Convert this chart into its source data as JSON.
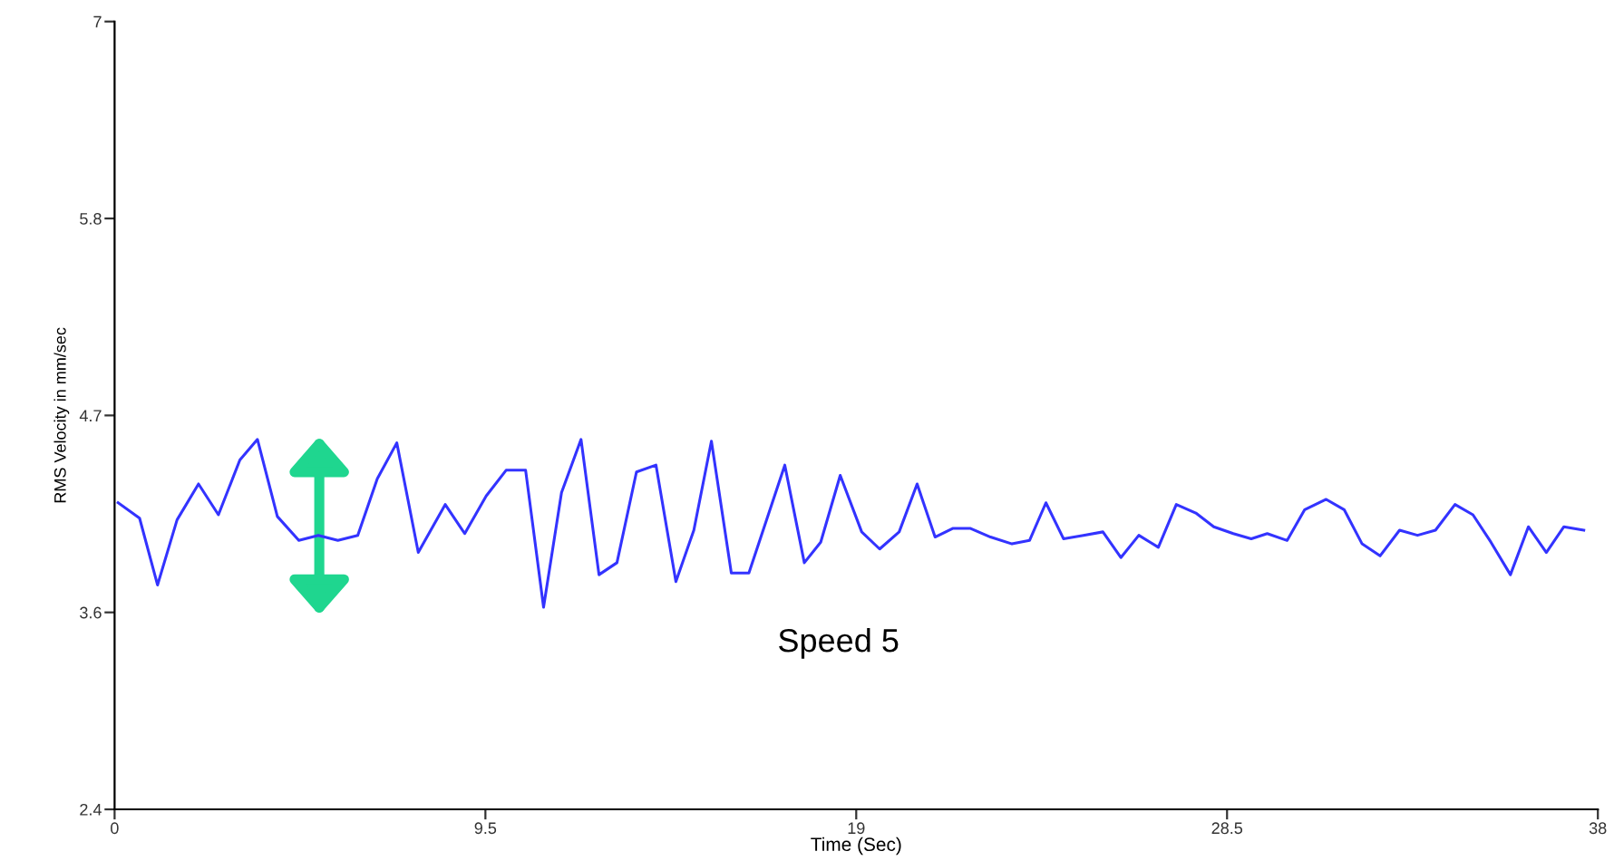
{
  "chart_data": {
    "type": "line",
    "xlabel": "Time (Sec)",
    "ylabel": "RMS Velocity in mm/sec",
    "annotations": [
      "Speed 5"
    ],
    "xlim": [
      0,
      38
    ],
    "xticks": [
      0,
      9.5,
      19,
      28.5,
      38
    ],
    "ylim": [
      2.4,
      7
    ],
    "yticks": [
      2.4,
      {
        "value": 3.55,
        "label": "3.6"
      },
      4.7,
      {
        "value": 5.85,
        "label": "5.8"
      },
      7
    ],
    "grid": false,
    "marker": "none",
    "line_style": "solid",
    "series": [
      {
        "color": "#3333ff",
        "x": [
          0.09,
          0.64,
          1.1,
          1.6,
          2.15,
          2.66,
          3.21,
          3.66,
          4.17,
          4.72,
          5.22,
          5.72,
          6.23,
          6.73,
          7.23,
          7.78,
          8.47,
          8.97,
          9.52,
          10.03,
          10.53,
          10.99,
          11.45,
          11.95,
          12.41,
          12.87,
          13.37,
          13.87,
          14.38,
          14.84,
          15.29,
          15.8,
          16.25,
          17.17,
          17.67,
          18.09,
          18.59,
          19.14,
          19.6,
          20.1,
          20.56,
          21.02,
          21.47,
          21.93,
          22.44,
          22.99,
          23.44,
          23.86,
          24.31,
          24.82,
          25.32,
          25.78,
          26.24,
          26.74,
          27.2,
          27.7,
          28.16,
          28.66,
          29.12,
          29.53,
          30.04,
          30.49,
          31.04,
          31.5,
          31.96,
          32.42,
          32.92,
          33.38,
          33.84,
          34.34,
          34.8,
          35.26,
          35.76,
          36.22,
          36.68,
          37.13,
          37.64
        ],
        "values": [
          4.19,
          4.1,
          3.71,
          4.09,
          4.3,
          4.12,
          4.44,
          4.56,
          4.11,
          3.97,
          4.0,
          3.97,
          4.0,
          4.33,
          4.54,
          3.9,
          4.18,
          4.01,
          4.23,
          4.38,
          4.38,
          3.58,
          4.25,
          4.56,
          3.77,
          3.84,
          4.37,
          4.41,
          3.73,
          4.03,
          4.55,
          3.78,
          3.78,
          4.41,
          3.84,
          3.96,
          4.35,
          4.02,
          3.92,
          4.02,
          4.3,
          3.99,
          4.04,
          4.04,
          3.99,
          3.95,
          3.97,
          4.19,
          3.98,
          4.0,
          4.02,
          3.87,
          4.0,
          3.93,
          4.18,
          4.13,
          4.05,
          4.01,
          3.98,
          4.01,
          3.97,
          4.15,
          4.21,
          4.15,
          3.95,
          3.88,
          4.03,
          4.0,
          4.03,
          4.18,
          4.12,
          3.96,
          3.77,
          4.05,
          3.9,
          4.05,
          4.03
        ]
      }
    ]
  }
}
